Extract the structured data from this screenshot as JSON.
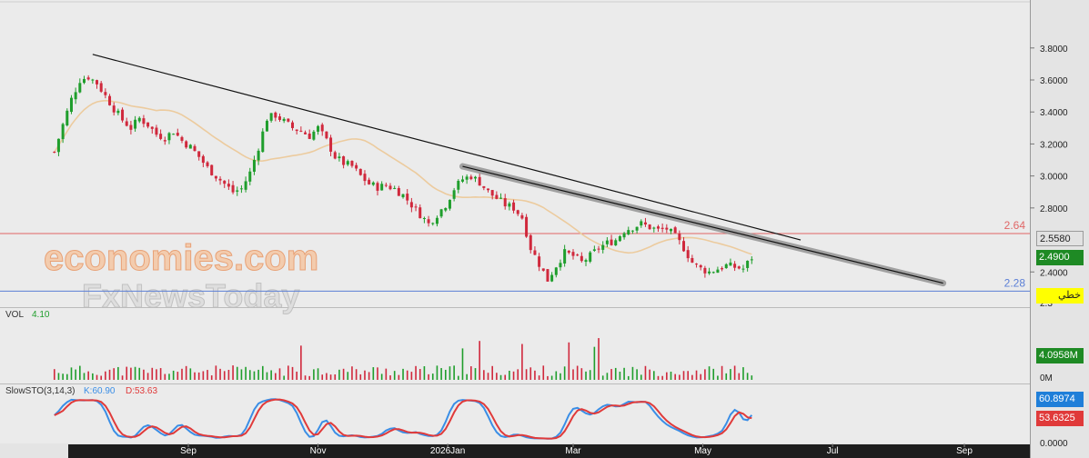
{
  "chart_data": [
    {
      "panel": "price",
      "type": "candlestick",
      "ylim": [
        2.28,
        3.9
      ],
      "y_ticks": [
        "3.8000",
        "3.6000",
        "3.4000",
        "3.2000",
        "3.0000",
        "2.8000",
        "2.4000"
      ],
      "price_tags": {
        "upper": "2.5580",
        "last": "2.4900"
      },
      "partial_tag": "2.3",
      "horizontal_levels": [
        {
          "label": "2.64",
          "value": 2.64,
          "color": "#e06666"
        },
        {
          "label": "2.28",
          "value": 2.28,
          "color": "#5b7fd6"
        }
      ],
      "trendline": {
        "start": [
          "2025-07-18",
          3.76
        ],
        "end": [
          "2026-06-16",
          2.6
        ]
      },
      "channel": {
        "start": [
          "2026-01-08",
          3.06
        ],
        "end": [
          "2026-08-22",
          2.33
        ]
      },
      "moving_average_color": "#eccb9e",
      "series": [
        {
          "date": "2025-06-30",
          "close": 3.15
        },
        {
          "date": "2025-07-04",
          "close": 3.32
        },
        {
          "date": "2025-07-08",
          "close": 3.48
        },
        {
          "date": "2025-07-12",
          "close": 3.6
        },
        {
          "date": "2025-07-16",
          "close": 3.62
        },
        {
          "date": "2025-07-20",
          "close": 3.58
        },
        {
          "date": "2025-07-24",
          "close": 3.5
        },
        {
          "date": "2025-07-28",
          "close": 3.42
        },
        {
          "date": "2025-08-01",
          "close": 3.35
        },
        {
          "date": "2025-08-05",
          "close": 3.3
        },
        {
          "date": "2025-08-09",
          "close": 3.36
        },
        {
          "date": "2025-08-13",
          "close": 3.32
        },
        {
          "date": "2025-08-17",
          "close": 3.26
        },
        {
          "date": "2025-08-21",
          "close": 3.24
        },
        {
          "date": "2025-08-25",
          "close": 3.28
        },
        {
          "date": "2025-08-29",
          "close": 3.22
        },
        {
          "date": "2025-09-02",
          "close": 3.18
        },
        {
          "date": "2025-09-06",
          "close": 3.12
        },
        {
          "date": "2025-09-10",
          "close": 3.05
        },
        {
          "date": "2025-09-14",
          "close": 3.0
        },
        {
          "date": "2025-09-18",
          "close": 2.95
        },
        {
          "date": "2025-09-22",
          "close": 2.9
        },
        {
          "date": "2025-09-26",
          "close": 2.92
        },
        {
          "date": "2025-09-30",
          "close": 3.02
        },
        {
          "date": "2025-10-04",
          "close": 3.18
        },
        {
          "date": "2025-10-08",
          "close": 3.36
        },
        {
          "date": "2025-10-12",
          "close": 3.38
        },
        {
          "date": "2025-10-16",
          "close": 3.34
        },
        {
          "date": "2025-10-20",
          "close": 3.3
        },
        {
          "date": "2025-10-24",
          "close": 3.28
        },
        {
          "date": "2025-10-28",
          "close": 3.25
        },
        {
          "date": "2025-11-01",
          "close": 3.3
        },
        {
          "date": "2025-11-05",
          "close": 3.22
        },
        {
          "date": "2025-11-09",
          "close": 3.12
        },
        {
          "date": "2025-11-13",
          "close": 3.08
        },
        {
          "date": "2025-11-17",
          "close": 3.06
        },
        {
          "date": "2025-11-21",
          "close": 3.0
        },
        {
          "date": "2025-11-25",
          "close": 2.95
        },
        {
          "date": "2025-11-29",
          "close": 2.93
        },
        {
          "date": "2025-12-03",
          "close": 2.94
        },
        {
          "date": "2025-12-07",
          "close": 2.92
        },
        {
          "date": "2025-12-11",
          "close": 2.88
        },
        {
          "date": "2025-12-15",
          "close": 2.82
        },
        {
          "date": "2025-12-19",
          "close": 2.76
        },
        {
          "date": "2025-12-23",
          "close": 2.7
        },
        {
          "date": "2025-12-27",
          "close": 2.76
        },
        {
          "date": "2025-12-31",
          "close": 2.82
        },
        {
          "date": "2026-01-04",
          "close": 2.92
        },
        {
          "date": "2026-01-08",
          "close": 2.98
        },
        {
          "date": "2026-01-12",
          "close": 3.0
        },
        {
          "date": "2026-01-16",
          "close": 2.96
        },
        {
          "date": "2026-01-20",
          "close": 2.9
        },
        {
          "date": "2026-01-24",
          "close": 2.86
        },
        {
          "date": "2026-01-28",
          "close": 2.82
        },
        {
          "date": "2026-02-01",
          "close": 2.8
        },
        {
          "date": "2026-02-05",
          "close": 2.74
        },
        {
          "date": "2026-02-09",
          "close": 2.55
        },
        {
          "date": "2026-02-13",
          "close": 2.45
        },
        {
          "date": "2026-02-17",
          "close": 2.35
        },
        {
          "date": "2026-02-21",
          "close": 2.44
        },
        {
          "date": "2026-02-25",
          "close": 2.52
        },
        {
          "date": "2026-03-01",
          "close": 2.5
        },
        {
          "date": "2026-03-05",
          "close": 2.46
        },
        {
          "date": "2026-03-09",
          "close": 2.5
        },
        {
          "date": "2026-03-13",
          "close": 2.55
        },
        {
          "date": "2026-03-17",
          "close": 2.58
        },
        {
          "date": "2026-03-21",
          "close": 2.6
        },
        {
          "date": "2026-03-25",
          "close": 2.66
        },
        {
          "date": "2026-03-29",
          "close": 2.68
        },
        {
          "date": "2026-04-02",
          "close": 2.7
        },
        {
          "date": "2026-04-06",
          "close": 2.68
        },
        {
          "date": "2026-04-10",
          "close": 2.66
        },
        {
          "date": "2026-04-14",
          "close": 2.67
        },
        {
          "date": "2026-04-18",
          "close": 2.62
        },
        {
          "date": "2026-04-22",
          "close": 2.55
        },
        {
          "date": "2026-04-26",
          "close": 2.46
        },
        {
          "date": "2026-04-30",
          "close": 2.42
        },
        {
          "date": "2026-05-04",
          "close": 2.4
        },
        {
          "date": "2026-05-08",
          "close": 2.42
        },
        {
          "date": "2026-05-12",
          "close": 2.44
        },
        {
          "date": "2026-05-16",
          "close": 2.43
        },
        {
          "date": "2026-05-20",
          "close": 2.42
        },
        {
          "date": "2026-05-24",
          "close": 2.49
        }
      ]
    },
    {
      "panel": "volume",
      "type": "bar",
      "name": "VOL",
      "value_label": "4.10",
      "tag": "4.0958M",
      "ticks": [
        "0M"
      ]
    },
    {
      "panel": "oscillator",
      "type": "line",
      "name": "SlowSTO(3,14,3)",
      "legend": [
        {
          "label": "K:60.90",
          "color": "#3a8ee6"
        },
        {
          "label": "D:53.63",
          "color": "#e03a3a"
        }
      ],
      "tags": {
        "k": "60.8974",
        "d": "53.6325"
      },
      "ticks": [
        "0.0000"
      ]
    },
    {
      "panel": "time-axis",
      "type": "axis",
      "labels": [
        {
          "text": "Sep",
          "date": "2025-09-01"
        },
        {
          "text": "Nov",
          "date": "2025-11-01"
        },
        {
          "text": "2026Jan",
          "date": "2026-01-01"
        },
        {
          "text": "Mar",
          "date": "2026-03-01"
        },
        {
          "text": "May",
          "date": "2026-05-01"
        },
        {
          "text": "Jul",
          "date": "2026-07-01"
        },
        {
          "text": "Sep",
          "date": "2026-09-01"
        }
      ]
    }
  ],
  "watermark": {
    "line1": "economies.com",
    "line2": "FxNewsToday"
  },
  "toolbar": {
    "button_label": "خطي"
  },
  "colors": {
    "up": "#1f9e2c",
    "down": "#d0283c",
    "background": "#eeeeee",
    "panel": "#e9e9e9"
  }
}
